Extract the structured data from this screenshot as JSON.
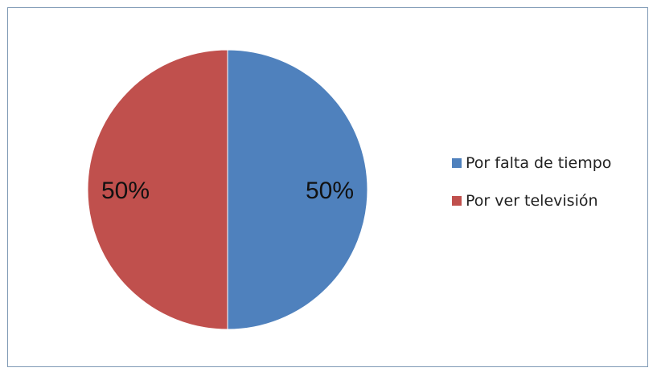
{
  "chart_data": {
    "type": "pie",
    "title": "",
    "slices": [
      {
        "label": "Por falta de tiempo",
        "value": 50,
        "display": "50%",
        "color": "#4f81bd"
      },
      {
        "label": "Por ver televisión",
        "value": 50,
        "display": "50%",
        "color": "#c0504d"
      }
    ],
    "legend_position": "right",
    "start_angle_deg": 0,
    "direction": "clockwise"
  },
  "colors": {
    "frame_border": "#7f9ab5",
    "slice_border": "#ffffff"
  }
}
